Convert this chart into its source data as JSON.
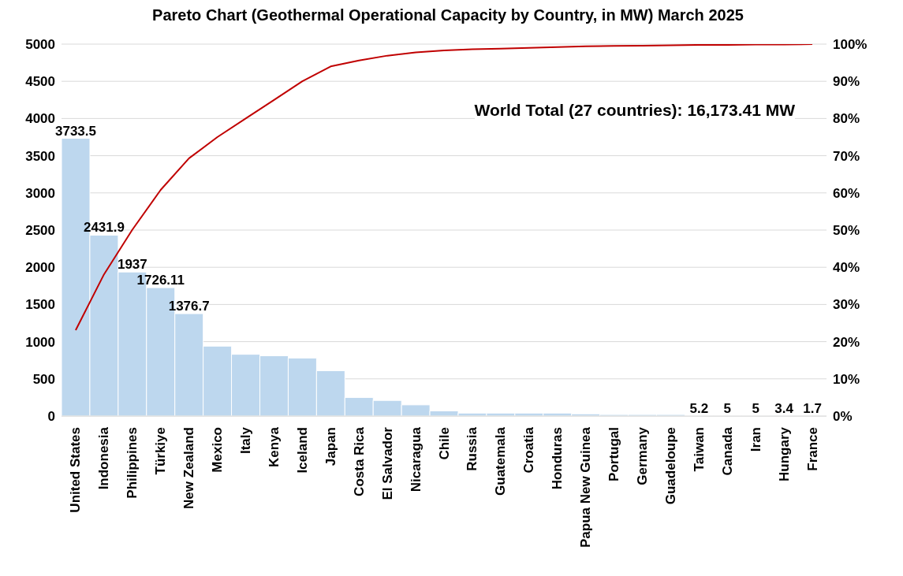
{
  "chart_data": {
    "type": "bar",
    "title": "Pareto Chart (Geothermal Operational Capacity by Country, in MW) March 2025",
    "categories": [
      "United States",
      "Indonesia",
      "Philippines",
      "Türkiye",
      "New Zealand",
      "Mexico",
      "Italy",
      "Kenya",
      "Iceland",
      "Japan",
      "Costa Rica",
      "El Salvador",
      "Nicaragua",
      "Chile",
      "Russia",
      "Guatemala",
      "Croatia",
      "Honduras",
      "Papua New Guinea",
      "Portugal",
      "Germany",
      "Guadeloupe",
      "Taiwan",
      "Canada",
      "Iran",
      "Hungary",
      "France"
    ],
    "series": [
      {
        "color": "#bdd7ee",
        "values": [
          3733.5,
          2431.9,
          1937,
          1726.11,
          1376.7,
          940,
          830,
          810,
          780,
          610,
          250,
          210,
          150,
          70,
          40,
          40,
          40,
          40,
          30,
          20,
          20,
          20,
          5.2,
          5,
          5,
          3.4,
          1.7
        ],
        "value_labels": [
          "3733.5",
          "2431.9",
          "1937",
          "1726.11",
          "1376.7",
          null,
          null,
          null,
          null,
          null,
          null,
          null,
          null,
          null,
          null,
          null,
          null,
          null,
          null,
          null,
          null,
          null,
          "5.2",
          "5",
          "5",
          "3.4",
          "1.7"
        ]
      },
      {
        "type": "line",
        "axis": "y2",
        "color": "#c00000",
        "values": [
          23.1,
          38.1,
          50.1,
          60.8,
          69.3,
          75,
          80,
          85,
          90,
          94,
          95.6,
          96.9,
          97.8,
          98.3,
          98.6,
          98.8,
          99,
          99.2,
          99.4,
          99.5,
          99.6,
          99.7,
          99.8,
          99.8,
          99.9,
          99.9,
          100
        ]
      }
    ],
    "ylim": [
      0,
      5000
    ],
    "yticks": [
      0,
      500,
      1000,
      1500,
      2000,
      2500,
      3000,
      3500,
      4000,
      4500,
      5000
    ],
    "y2lim": [
      0,
      100
    ],
    "y2ticks": [
      {
        "value": 0,
        "label": "0%"
      },
      {
        "value": 10,
        "label": "10%"
      },
      {
        "value": 20,
        "label": "20%"
      },
      {
        "value": 30,
        "label": "30%"
      },
      {
        "value": 40,
        "label": "40%"
      },
      {
        "value": 50,
        "label": "50%"
      },
      {
        "value": 60,
        "label": "60%"
      },
      {
        "value": 70,
        "label": "70%"
      },
      {
        "value": 80,
        "label": "80%"
      },
      {
        "value": 90,
        "label": "90%"
      },
      {
        "value": 100,
        "label": "100%"
      }
    ],
    "grid": "y",
    "marker": "none",
    "annotations": [
      "World Total (27 countries): 16,173.41 MW"
    ]
  }
}
